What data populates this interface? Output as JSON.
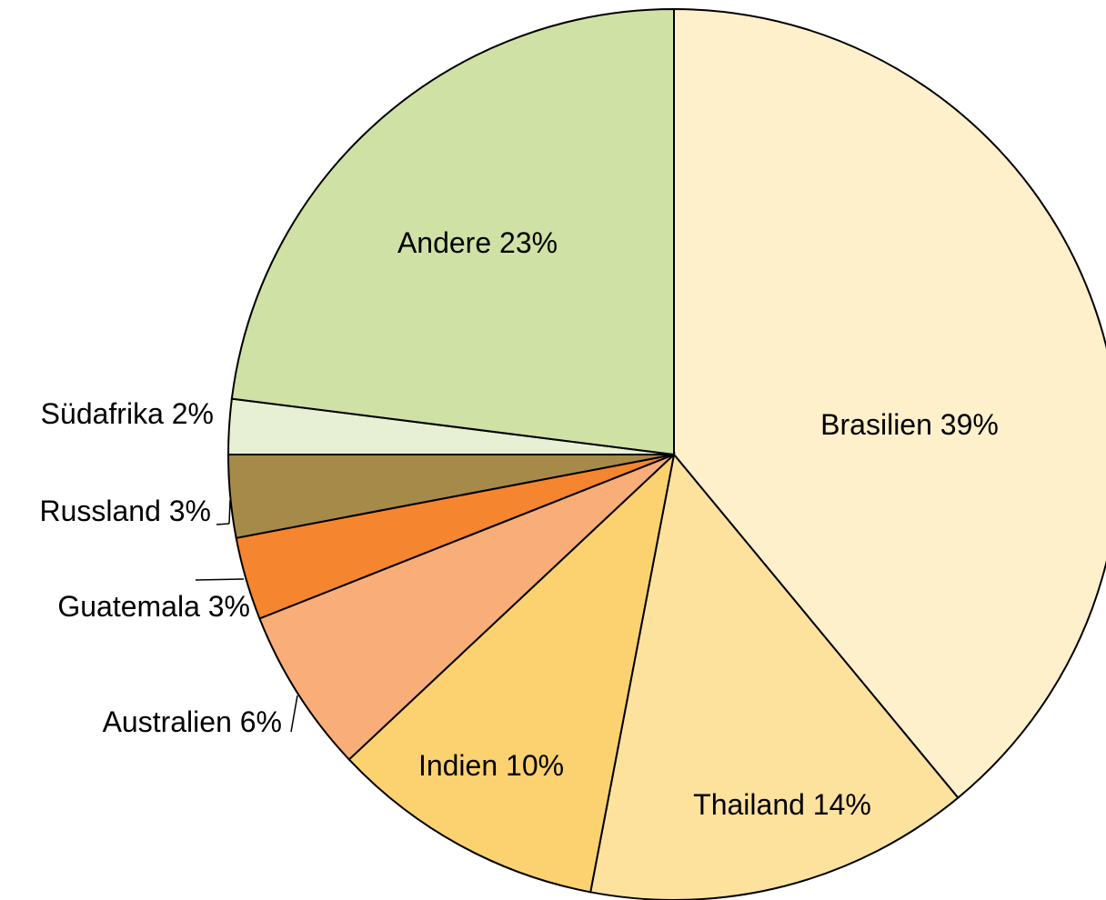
{
  "chart_data": {
    "type": "pie",
    "categories": [
      "Brasilien",
      "Thailand",
      "Indien",
      "Australien",
      "Guatemala",
      "Russland",
      "Südafrika",
      "Andere"
    ],
    "values": [
      39,
      14,
      10,
      6,
      3,
      3,
      2,
      23
    ],
    "value_labels": [
      "39%",
      "14%",
      "10%",
      "6%",
      "3%",
      "3%",
      "2%",
      "23%"
    ],
    "colors": [
      "#fff0cc",
      "#fde29e",
      "#fcd271",
      "#f9ad78",
      "#f5852e",
      "#a58a4a",
      "#e7f0d4",
      "#d0e1a6"
    ]
  }
}
